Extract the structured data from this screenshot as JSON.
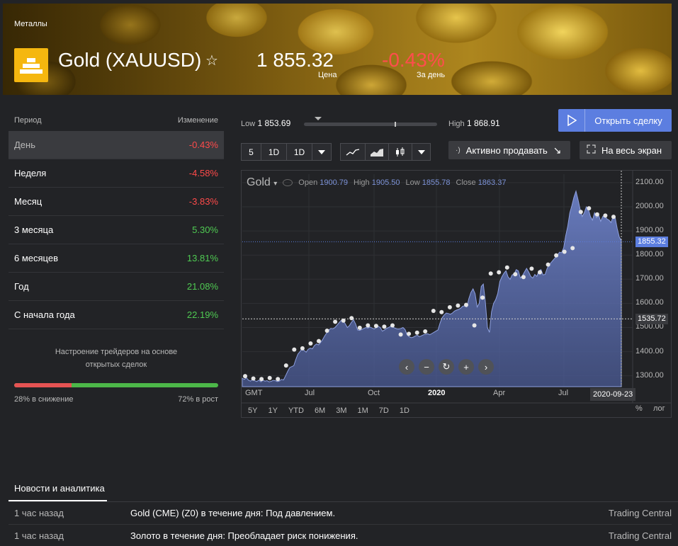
{
  "header": {
    "breadcrumb": "Металлы",
    "title": "Gold (XAUUSD)",
    "price": "1 855.32",
    "price_label": "Цена",
    "change": "-0.43%",
    "change_label": "За день"
  },
  "periods": {
    "col_period": "Период",
    "col_change": "Изменение",
    "rows": [
      {
        "label": "День",
        "value": "-0.43%",
        "sign": "neg",
        "active": true
      },
      {
        "label": "Неделя",
        "value": "-4.58%",
        "sign": "neg"
      },
      {
        "label": "Месяц",
        "value": "-3.83%",
        "sign": "neg"
      },
      {
        "label": "3 месяца",
        "value": "5.30%",
        "sign": "pos"
      },
      {
        "label": "6 месяцев",
        "value": "13.81%",
        "sign": "pos"
      },
      {
        "label": "Год",
        "value": "21.08%",
        "sign": "pos"
      },
      {
        "label": "С начала года",
        "value": "22.19%",
        "sign": "pos"
      }
    ]
  },
  "sentiment": {
    "title_line1": "Настроение трейдеров на основе",
    "title_line2": "открытых сделок",
    "down_label": "28% в снижение",
    "up_label": "72% в рост",
    "down_fraction": 0.28
  },
  "range": {
    "low_key": "Low",
    "low_value": "1 853.69",
    "high_key": "High",
    "high_value": "1 868.91"
  },
  "actions": {
    "open_deal": "Открыть сделку",
    "sell_active": "Активно продавать",
    "fullscreen": "На весь экран"
  },
  "toolbar": {
    "count": "5",
    "interval1": "1D",
    "interval2": "1D"
  },
  "chart_legend": {
    "name": "Gold",
    "open_key": "Open",
    "open_value": "1900.79",
    "high_key": "High",
    "high_value": "1905.50",
    "low_key": "Low",
    "low_value": "1855.78",
    "close_key": "Close",
    "close_value": "1863.37"
  },
  "chart_data": {
    "type": "area",
    "y_ticks": [
      "2100.00",
      "2000.00",
      "1900.00",
      "1800.00",
      "1700.00",
      "1600.00",
      "1500.00",
      "1400.00",
      "1300.00"
    ],
    "ylim": [
      1255,
      2135
    ],
    "x_labels": [
      "GMT",
      "Jul",
      "Oct",
      "2020",
      "Apr",
      "Jul"
    ],
    "current_price_label": "1855.32",
    "reference_label": "1535.72",
    "date_badge": "2020-09-23",
    "values": [
      1290,
      1285,
      1292,
      1282,
      1278,
      1286,
      1280,
      1276,
      1282,
      1275,
      1282,
      1278,
      1280,
      1275,
      1277,
      1281,
      1280,
      1276,
      1278,
      1285,
      1283,
      1300,
      1318,
      1334,
      1338,
      1342,
      1368,
      1390,
      1400,
      1412,
      1405,
      1398,
      1410,
      1415,
      1412,
      1425,
      1432,
      1428,
      1438,
      1450,
      1465,
      1478,
      1490,
      1496,
      1495,
      1500,
      1510,
      1520,
      1530,
      1528,
      1515,
      1500,
      1508,
      1522,
      1532,
      1515,
      1490,
      1488,
      1492,
      1496,
      1500,
      1498,
      1502,
      1498,
      1494,
      1500,
      1505,
      1500,
      1485,
      1490,
      1496,
      1500,
      1505,
      1502,
      1498,
      1495,
      1494,
      1496,
      1500,
      1492,
      1470,
      1462,
      1458,
      1460,
      1465,
      1468,
      1462,
      1466,
      1470,
      1472,
      1474,
      1470,
      1475,
      1480,
      1485,
      1490,
      1518,
      1540,
      1552,
      1560,
      1558,
      1555,
      1560,
      1568,
      1572,
      1575,
      1580,
      1588,
      1590,
      1585,
      1620,
      1645,
      1660,
      1640,
      1585,
      1600,
      1670,
      1680,
      1605,
      1500,
      1480,
      1565,
      1600,
      1615,
      1640,
      1690,
      1710,
      1725,
      1735,
      1710,
      1700,
      1718,
      1722,
      1740,
      1735,
      1705,
      1715,
      1730,
      1745,
      1730,
      1712,
      1705,
      1720,
      1712,
      1735,
      1740,
      1718,
      1720,
      1745,
      1760,
      1770,
      1780,
      1790,
      1800,
      1812,
      1810,
      1830,
      1880,
      1920,
      1975,
      2005,
      2040,
      2065,
      2030,
      1990,
      1960,
      1975,
      2000,
      1990,
      1960,
      1945,
      1975,
      1955,
      1965,
      1940,
      1960,
      1965,
      1950,
      1945,
      1935,
      1960,
      1955,
      1910,
      1875,
      1860
    ],
    "markers": [
      1290,
      1280,
      1278,
      1282,
      1278,
      1334,
      1400,
      1405,
      1425,
      1435,
      1478,
      1515,
      1520,
      1530,
      1490,
      1500,
      1498,
      1495,
      1500,
      1462,
      1465,
      1470,
      1475,
      1560,
      1555,
      1575,
      1582,
      1585,
      1500,
      1615,
      1715,
      1720,
      1740,
      1712,
      1700,
      1735,
      1720,
      1752,
      1790,
      1805,
      1820,
      1970,
      1985,
      1960,
      1955,
      1950
    ]
  },
  "chart_tabs": {
    "ranges": [
      "5Y",
      "1Y",
      "YTD",
      "6M",
      "3M",
      "1M",
      "7D",
      "1D"
    ],
    "percent": "%",
    "log": "лог"
  },
  "news": {
    "tab": "Новости и аналитика",
    "items": [
      {
        "time": "1 час назад",
        "headline": "Gold (CME) (Z0) в течение дня: Под давлением.",
        "source": "Trading Central"
      },
      {
        "time": "1 час назад",
        "headline": "Золото в течение дня: Преобладает риск понижения.",
        "source": "Trading Central"
      }
    ]
  }
}
